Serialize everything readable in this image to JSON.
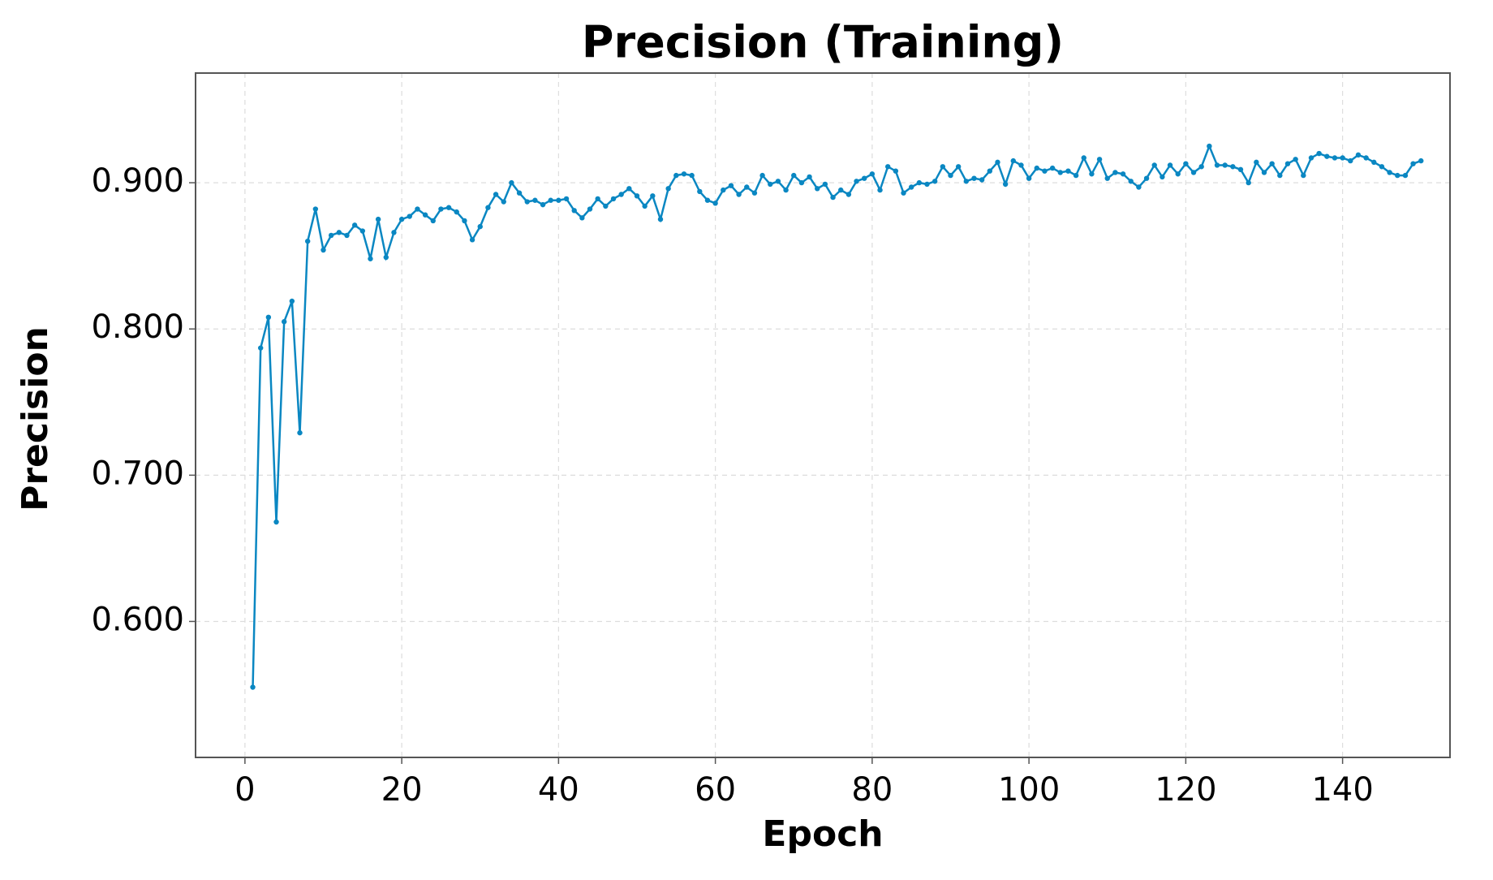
{
  "chart_data": {
    "type": "line",
    "title": "Precision (Training)",
    "x_label": "Epoch",
    "y_label": "Precision",
    "x": [
      1,
      2,
      3,
      4,
      5,
      6,
      7,
      8,
      9,
      10,
      11,
      12,
      13,
      14,
      15,
      16,
      17,
      18,
      19,
      20,
      21,
      22,
      23,
      24,
      25,
      26,
      27,
      28,
      29,
      30,
      31,
      32,
      33,
      34,
      35,
      36,
      37,
      38,
      39,
      40,
      41,
      42,
      43,
      44,
      45,
      46,
      47,
      48,
      49,
      50,
      51,
      52,
      53,
      54,
      55,
      56,
      57,
      58,
      59,
      60,
      61,
      62,
      63,
      64,
      65,
      66,
      67,
      68,
      69,
      70,
      71,
      72,
      73,
      74,
      75,
      76,
      77,
      78,
      79,
      80,
      81,
      82,
      83,
      84,
      85,
      86,
      87,
      88,
      89,
      90,
      91,
      92,
      93,
      94,
      95,
      96,
      97,
      98,
      99,
      100,
      101,
      102,
      103,
      104,
      105,
      106,
      107,
      108,
      109,
      110,
      111,
      112,
      113,
      114,
      115,
      116,
      117,
      118,
      119,
      120,
      121,
      122,
      123,
      124,
      125,
      126,
      127,
      128,
      129,
      130,
      131,
      132,
      133,
      134,
      135,
      136,
      137,
      138,
      139,
      140,
      141,
      142,
      143,
      144,
      145,
      146,
      147,
      148,
      149,
      150
    ],
    "values": [
      0.555,
      0.787,
      0.808,
      0.668,
      0.805,
      0.819,
      0.729,
      0.86,
      0.882,
      0.854,
      0.864,
      0.866,
      0.864,
      0.871,
      0.867,
      0.848,
      0.875,
      0.849,
      0.866,
      0.875,
      0.877,
      0.882,
      0.878,
      0.874,
      0.882,
      0.883,
      0.88,
      0.874,
      0.861,
      0.87,
      0.883,
      0.892,
      0.887,
      0.9,
      0.893,
      0.887,
      0.888,
      0.885,
      0.888,
      0.888,
      0.889,
      0.881,
      0.876,
      0.882,
      0.889,
      0.884,
      0.889,
      0.892,
      0.896,
      0.891,
      0.884,
      0.891,
      0.875,
      0.896,
      0.905,
      0.906,
      0.905,
      0.894,
      0.888,
      0.886,
      0.895,
      0.898,
      0.892,
      0.897,
      0.893,
      0.905,
      0.899,
      0.901,
      0.895,
      0.905,
      0.9,
      0.904,
      0.896,
      0.899,
      0.89,
      0.895,
      0.892,
      0.901,
      0.903,
      0.906,
      0.895,
      0.911,
      0.908,
      0.893,
      0.897,
      0.9,
      0.899,
      0.901,
      0.911,
      0.905,
      0.911,
      0.901,
      0.903,
      0.902,
      0.908,
      0.914,
      0.899,
      0.915,
      0.912,
      0.903,
      0.91,
      0.908,
      0.91,
      0.907,
      0.908,
      0.905,
      0.917,
      0.906,
      0.916,
      0.903,
      0.907,
      0.906,
      0.901,
      0.897,
      0.903,
      0.912,
      0.904,
      0.912,
      0.906,
      0.913,
      0.907,
      0.911,
      0.925,
      0.912,
      0.912,
      0.911,
      0.909,
      0.9,
      0.914,
      0.907,
      0.913,
      0.905,
      0.913,
      0.916,
      0.905,
      0.917,
      0.92,
      0.918,
      0.917,
      0.917,
      0.915,
      0.919,
      0.917,
      0.914,
      0.911,
      0.907,
      0.905,
      0.905,
      0.913,
      0.915
    ],
    "color": "#0a87c2",
    "xlim": [
      -6.3,
      153.7
    ],
    "ylim": [
      0.507,
      0.975
    ],
    "xticks": [
      0,
      20,
      40,
      60,
      80,
      100,
      120,
      140
    ],
    "yticks": [
      {
        "value": 0.6,
        "label": "0.600"
      },
      {
        "value": 0.7,
        "label": "0.700"
      },
      {
        "value": 0.8,
        "label": "0.800"
      },
      {
        "value": 0.9,
        "label": "0.900"
      }
    ],
    "grid": true
  }
}
